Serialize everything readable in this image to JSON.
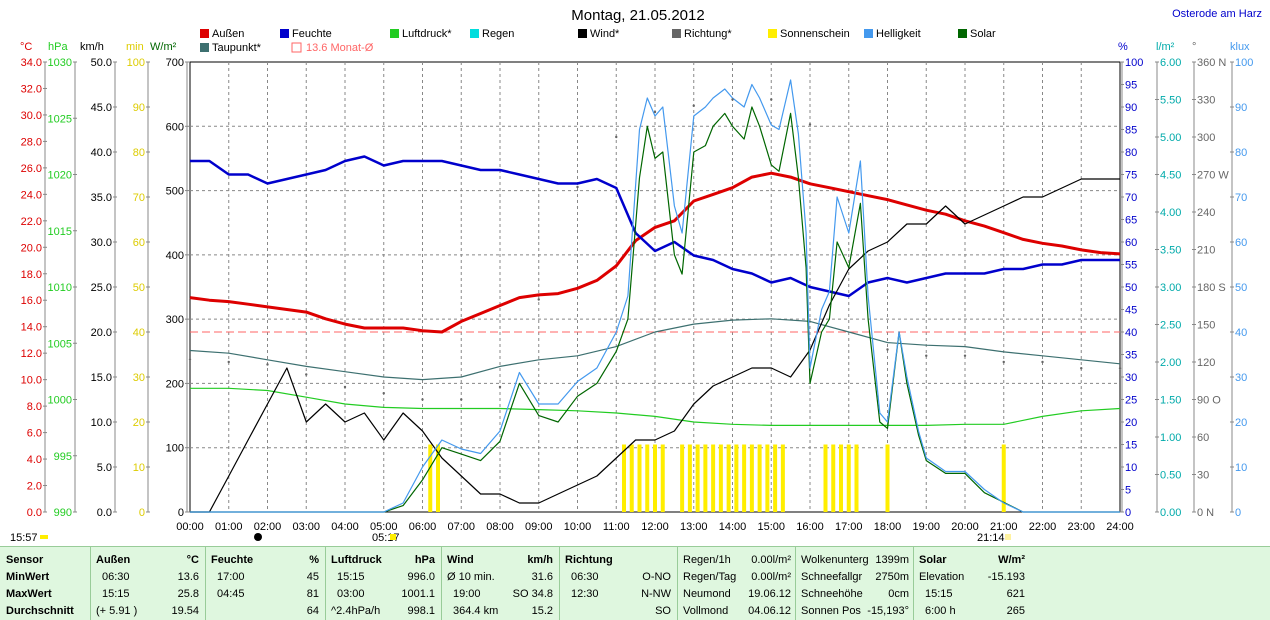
{
  "header": {
    "title": "Montag, 21.05.2012",
    "station": "Osterode am Harz"
  },
  "legend": [
    {
      "label": "Außen",
      "color": "#dd0000"
    },
    {
      "label": "Taupunkt*",
      "color": "#3d7070"
    },
    {
      "label": "Feuchte",
      "color": "#0000cc"
    },
    {
      "label": "13.6 Monat-Ø",
      "color": "#ff6666"
    },
    {
      "label": "Luftdruck*",
      "color": "#22cc22"
    },
    {
      "label": "Regen",
      "color": "#00dddd"
    },
    {
      "label": "Wind*",
      "color": "#000000"
    },
    {
      "label": "Richtung*",
      "color": "#666666"
    },
    {
      "label": "Sonnenschein",
      "color": "#ffee00"
    },
    {
      "label": "Helligkeit",
      "color": "#4499ee"
    },
    {
      "label": "Solar",
      "color": "#006600"
    }
  ],
  "axis_units": {
    "temp": "°C",
    "press": "hPa",
    "wind": "km/h",
    "min": "min",
    "solar": "W/m²",
    "hum": "%",
    "rain": "l/m²",
    "dir": "°",
    "lux": "klux"
  },
  "markers": {
    "sunrise": "05:17",
    "sunset": "21:14",
    "left_time": "15:57"
  },
  "chart_data": {
    "type": "line",
    "x_unit": "hour",
    "x_range": [
      0,
      24
    ],
    "x_ticks": [
      "00:00",
      "01:00",
      "02:00",
      "03:00",
      "04:00",
      "05:00",
      "06:00",
      "07:00",
      "08:00",
      "09:00",
      "10:00",
      "11:00",
      "12:00",
      "13:00",
      "14:00",
      "15:00",
      "16:00",
      "17:00",
      "18:00",
      "19:00",
      "20:00",
      "21:00",
      "22:00",
      "23:00",
      "24:00"
    ],
    "y_axes": {
      "temp": {
        "range": [
          0,
          34
        ],
        "ticks": [
          "0.0",
          "2.0",
          "4.0",
          "6.0",
          "8.0",
          "10.0",
          "12.0",
          "14.0",
          "16.0",
          "18.0",
          "20.0",
          "22.0",
          "24.0",
          "26.0",
          "28.0",
          "30.0",
          "32.0",
          "34.0"
        ]
      },
      "press": {
        "range": [
          990,
          1030
        ],
        "ticks": [
          "990",
          "995",
          "1000",
          "1005",
          "1010",
          "1015",
          "1020",
          "1025",
          "1030"
        ]
      },
      "wind": {
        "range": [
          0,
          50
        ],
        "ticks": [
          "0.0",
          "5.0",
          "10.0",
          "15.0",
          "20.0",
          "25.0",
          "30.0",
          "35.0",
          "40.0",
          "45.0",
          "50.0"
        ]
      },
      "min": {
        "range": [
          0,
          100
        ],
        "ticks": [
          "0",
          "10",
          "20",
          "30",
          "40",
          "50",
          "60",
          "70",
          "80",
          "90",
          "100"
        ]
      },
      "solar": {
        "range": [
          0,
          700
        ],
        "ticks": [
          "0",
          "100",
          "200",
          "300",
          "400",
          "500",
          "600",
          "700"
        ]
      },
      "hum": {
        "range": [
          0,
          100
        ],
        "ticks": [
          "0",
          "5",
          "10",
          "15",
          "20",
          "25",
          "30",
          "35",
          "40",
          "45",
          "50",
          "55",
          "60",
          "65",
          "70",
          "75",
          "80",
          "85",
          "90",
          "95",
          "100"
        ]
      },
      "rain": {
        "range": [
          0,
          6
        ],
        "ticks": [
          "0.00",
          "0.50",
          "1.00",
          "1.50",
          "2.00",
          "2.50",
          "3.00",
          "3.50",
          "4.00",
          "4.50",
          "5.00",
          "5.50",
          "6.00"
        ]
      },
      "dir": {
        "range": [
          0,
          360
        ],
        "ticks": [
          "0 N",
          "30",
          "60",
          "90 O",
          "120",
          "150",
          "180 S",
          "210",
          "240",
          "270 W",
          "300",
          "330",
          "360 N"
        ]
      },
      "lux": {
        "range": [
          0,
          100
        ],
        "ticks": [
          "0",
          "10",
          "20",
          "30",
          "40",
          "50",
          "60",
          "70",
          "80",
          "90",
          "100"
        ]
      }
    },
    "month_avg": {
      "name": "13.6 Monat-Ø",
      "axis": "temp",
      "value": 13.6
    },
    "series": [
      {
        "name": "Außen",
        "axis": "temp",
        "color": "#dd0000",
        "x": [
          0,
          0.5,
          1,
          1.5,
          2,
          2.5,
          3,
          3.5,
          4,
          4.5,
          5,
          5.5,
          6,
          6.5,
          7,
          7.5,
          8,
          8.5,
          9,
          9.5,
          10,
          10.5,
          11,
          11.5,
          12,
          12.5,
          13,
          13.5,
          14,
          14.5,
          15,
          15.5,
          16,
          16.5,
          17,
          17.5,
          18,
          18.5,
          19,
          19.5,
          20,
          20.5,
          21,
          21.5,
          22,
          22.5,
          23,
          23.5,
          24
        ],
        "y": [
          16.2,
          16.0,
          15.9,
          15.7,
          15.5,
          15.3,
          15.1,
          14.6,
          14.2,
          13.9,
          13.9,
          13.9,
          13.7,
          13.6,
          14.4,
          15.0,
          15.6,
          16.2,
          16.4,
          16.5,
          16.9,
          17.5,
          18.6,
          20.5,
          21.5,
          22.0,
          23.5,
          24.0,
          24.5,
          25.3,
          25.6,
          25.3,
          24.8,
          24.5,
          24.2,
          23.9,
          23.6,
          23.2,
          22.8,
          22.5,
          22.0,
          21.6,
          21.1,
          20.6,
          20.3,
          20.1,
          19.8,
          19.6,
          19.5
        ]
      },
      {
        "name": "Taupunkt*",
        "axis": "temp",
        "color": "#3d7070",
        "x": [
          0,
          1,
          2,
          3,
          4,
          5,
          6,
          7,
          8,
          9,
          10,
          11,
          12,
          13,
          14,
          15,
          16,
          17,
          18,
          19,
          20,
          21,
          22,
          23,
          24
        ],
        "y": [
          12.2,
          12.0,
          11.5,
          11.0,
          10.6,
          10.2,
          10.0,
          10.2,
          11.0,
          11.5,
          11.8,
          12.5,
          13.6,
          14.2,
          14.5,
          14.6,
          14.4,
          13.6,
          12.8,
          12.6,
          12.5,
          12.1,
          11.8,
          11.5,
          11.2
        ]
      },
      {
        "name": "Feuchte",
        "axis": "hum",
        "color": "#0000cc",
        "x": [
          0,
          0.5,
          1,
          1.5,
          2,
          2.5,
          3,
          3.5,
          4,
          4.5,
          5,
          5.5,
          6,
          6.5,
          7,
          7.5,
          8,
          8.5,
          9,
          9.5,
          10,
          10.5,
          11,
          11.5,
          12,
          12.5,
          13,
          13.5,
          14,
          14.5,
          15,
          15.5,
          16,
          16.5,
          17,
          17.5,
          18,
          18.5,
          19,
          19.5,
          20,
          20.5,
          21,
          21.5,
          22,
          22.5,
          23,
          23.5,
          24
        ],
        "y": [
          78,
          78,
          75,
          75,
          73,
          74,
          75,
          76,
          78,
          79,
          77,
          78,
          78,
          78,
          77,
          76,
          76,
          75,
          74,
          73,
          73,
          74,
          72,
          62,
          58,
          60,
          57,
          56,
          54,
          53,
          51,
          52,
          50,
          49,
          48,
          51,
          52,
          51,
          52,
          53,
          53,
          53,
          54,
          54,
          55,
          55,
          56,
          56,
          56
        ]
      },
      {
        "name": "Luftdruck*",
        "axis": "press",
        "color": "#22cc22",
        "x": [
          0,
          1,
          2,
          3,
          4,
          5,
          6,
          7,
          8,
          9,
          10,
          11,
          12,
          13,
          14,
          15,
          16,
          17,
          18,
          19,
          20,
          20.5,
          21,
          22,
          23,
          24
        ],
        "y": [
          1001.0,
          1001.0,
          1000.8,
          1000.2,
          999.6,
          999.3,
          999.2,
          999.2,
          999.2,
          999.1,
          999.0,
          998.8,
          998.5,
          998.0,
          997.8,
          997.7,
          997.7,
          997.7,
          997.7,
          997.7,
          997.8,
          997.8,
          997.8,
          998.5,
          999.0,
          999.2
        ]
      },
      {
        "name": "Wind*",
        "axis": "wind",
        "color": "#000000",
        "x": [
          0,
          0.5,
          1,
          1.5,
          2,
          2.5,
          3,
          3.5,
          4,
          4.5,
          5,
          5.5,
          6,
          6.5,
          7,
          7.5,
          8,
          8.5,
          9,
          9.5,
          10,
          10.5,
          11,
          11.5,
          12,
          12.5,
          13,
          13.5,
          14,
          14.5,
          15,
          15.5,
          16,
          16.5,
          17,
          17.5,
          18,
          18.5,
          19,
          19.5,
          20,
          20.5,
          21,
          21.5,
          22,
          22.5,
          23,
          23.5,
          24
        ],
        "y": [
          0,
          0,
          4,
          8,
          12,
          16,
          10,
          12,
          10,
          11,
          8,
          11,
          9,
          6,
          4,
          2,
          2,
          1,
          1,
          2,
          3,
          4,
          6,
          8,
          8,
          9,
          12,
          14,
          15,
          16,
          16,
          15,
          18,
          23,
          27,
          29,
          30,
          32,
          32,
          34,
          32,
          33,
          34,
          35,
          35,
          36,
          37,
          37,
          37
        ]
      },
      {
        "name": "Solar",
        "axis": "solar",
        "color": "#006600",
        "x": [
          0,
          5,
          5.5,
          6,
          6.5,
          7,
          7.5,
          8,
          8.5,
          9,
          9.5,
          10,
          10.5,
          11,
          11.3,
          11.6,
          11.8,
          12,
          12.2,
          12.5,
          12.7,
          13,
          13.3,
          13.5,
          13.8,
          14,
          14.3,
          14.5,
          14.7,
          15,
          15.2,
          15.5,
          15.7,
          15.9,
          16,
          16.3,
          16.5,
          16.7,
          17,
          17.3,
          17.5,
          17.8,
          18,
          18.3,
          18.5,
          18.8,
          19,
          19.5,
          20,
          20.5,
          21,
          21.5,
          22,
          24
        ],
        "y": [
          0,
          0,
          10,
          50,
          100,
          90,
          80,
          110,
          200,
          150,
          140,
          180,
          200,
          250,
          300,
          520,
          600,
          550,
          560,
          400,
          370,
          560,
          570,
          600,
          620,
          600,
          580,
          630,
          600,
          540,
          530,
          620,
          520,
          380,
          200,
          280,
          300,
          420,
          380,
          480,
          300,
          140,
          130,
          280,
          200,
          120,
          80,
          60,
          60,
          30,
          15,
          0,
          0,
          0
        ]
      },
      {
        "name": "Helligkeit",
        "axis": "lux",
        "color": "#4499ee",
        "x": [
          0,
          5,
          5.5,
          6,
          6.5,
          7,
          7.5,
          8,
          8.5,
          9,
          9.5,
          10,
          10.5,
          11,
          11.3,
          11.6,
          11.8,
          12,
          12.2,
          12.5,
          12.7,
          13,
          13.3,
          13.5,
          13.8,
          14,
          14.3,
          14.5,
          14.7,
          15,
          15.2,
          15.5,
          15.7,
          15.9,
          16,
          16.3,
          16.5,
          16.7,
          17,
          17.3,
          17.5,
          17.8,
          18,
          18.3,
          18.5,
          18.8,
          19,
          19.5,
          20,
          20.5,
          21,
          21.5,
          22,
          24
        ],
        "y": [
          0,
          0,
          2,
          10,
          16,
          14,
          13,
          18,
          31,
          24,
          24,
          29,
          32,
          40,
          48,
          85,
          92,
          88,
          90,
          68,
          62,
          88,
          90,
          92,
          94,
          92,
          90,
          95,
          92,
          86,
          85,
          96,
          84,
          62,
          32,
          45,
          49,
          70,
          62,
          78,
          48,
          22,
          20,
          40,
          30,
          18,
          12,
          9,
          9,
          5,
          2,
          0,
          0,
          0
        ]
      },
      {
        "name": "Richtung*",
        "axis": "dir",
        "color": "#666666",
        "x": [
          0,
          1,
          2,
          3,
          4,
          5,
          6,
          7,
          8,
          9,
          10,
          11,
          12,
          13,
          14,
          15,
          16,
          17,
          18,
          19,
          20,
          21,
          22,
          23,
          24
        ],
        "y": [
          122,
          120,
          118,
          110,
          100,
          95,
          90,
          90,
          100,
          170,
          260,
          300,
          320,
          325,
          330,
          330,
          310,
          250,
          130,
          125,
          125,
          120,
          120,
          115,
          115
        ]
      }
    ],
    "bars": {
      "name": "Sonnenschein",
      "axis": "min",
      "color": "#ffee00",
      "x": [
        6.2,
        6.4,
        11.2,
        11.4,
        11.6,
        11.8,
        12.0,
        12.2,
        12.7,
        12.9,
        13.1,
        13.3,
        13.5,
        13.7,
        13.9,
        14.1,
        14.3,
        14.5,
        14.7,
        14.9,
        15.1,
        15.3,
        16.4,
        16.6,
        16.8,
        17.0,
        17.2,
        18.0,
        21.0
      ],
      "y": [
        15,
        15,
        15,
        15,
        15,
        15,
        15,
        15,
        15,
        15,
        15,
        15,
        15,
        15,
        15,
        15,
        15,
        15,
        15,
        15,
        15,
        15,
        15,
        15,
        15,
        15,
        15,
        15,
        15
      ]
    }
  },
  "stats": {
    "sensor": {
      "head": "Sensor",
      "rows": [
        "MinWert",
        "MaxWert",
        "Durchschnitt"
      ]
    },
    "aussen": {
      "head": "Außen",
      "unit": "°C",
      "rows": [
        [
          "06:30",
          "13.6"
        ],
        [
          "15:15",
          "25.8"
        ],
        [
          "(+ 5.91 )",
          "19.54"
        ]
      ]
    },
    "feuchte": {
      "head": "Feuchte",
      "unit": "%",
      "rows": [
        [
          "17:00",
          "45"
        ],
        [
          "04:45",
          "81"
        ],
        [
          "",
          "64"
        ]
      ]
    },
    "luftdruck": {
      "head": "Luftdruck",
      "unit": "hPa",
      "rows": [
        [
          "15:15",
          "996.0"
        ],
        [
          "03:00",
          "1001.1"
        ],
        [
          "^2.4hPa/h",
          "998.1"
        ]
      ]
    },
    "wind": {
      "head": "Wind",
      "unit": "km/h",
      "rows": [
        [
          "Ø 10 min.",
          "31.6"
        ],
        [
          "19:00",
          "SO 34.8"
        ],
        [
          "364.4 km",
          "15.2"
        ]
      ]
    },
    "richtung": {
      "head": "Richtung",
      "rows": [
        [
          "06:30",
          "O-NO"
        ],
        [
          "12:30",
          "N-NW"
        ],
        [
          "",
          "SO"
        ]
      ]
    },
    "regen": {
      "rows": [
        [
          "Regen/1h",
          "0.00l/m²"
        ],
        [
          "Regen/Tag",
          "0.00l/m²"
        ],
        [
          "Neumond",
          "19.06.12"
        ],
        [
          "Vollmond",
          "04.06.12"
        ]
      ]
    },
    "wolken": {
      "rows": [
        [
          "Wolkenunterg",
          "1399m"
        ],
        [
          "Schneefallgr",
          "2750m"
        ],
        [
          "Schneehöhe",
          "0cm"
        ],
        [
          "Sonnen Pos",
          "-15,193°"
        ]
      ]
    },
    "solar": {
      "head": "Solar",
      "unit": "W/m²",
      "rows": [
        [
          "Elevation",
          "-15.193"
        ],
        [
          "15:15",
          "621"
        ],
        [
          "6:00 h",
          "265"
        ]
      ]
    }
  }
}
